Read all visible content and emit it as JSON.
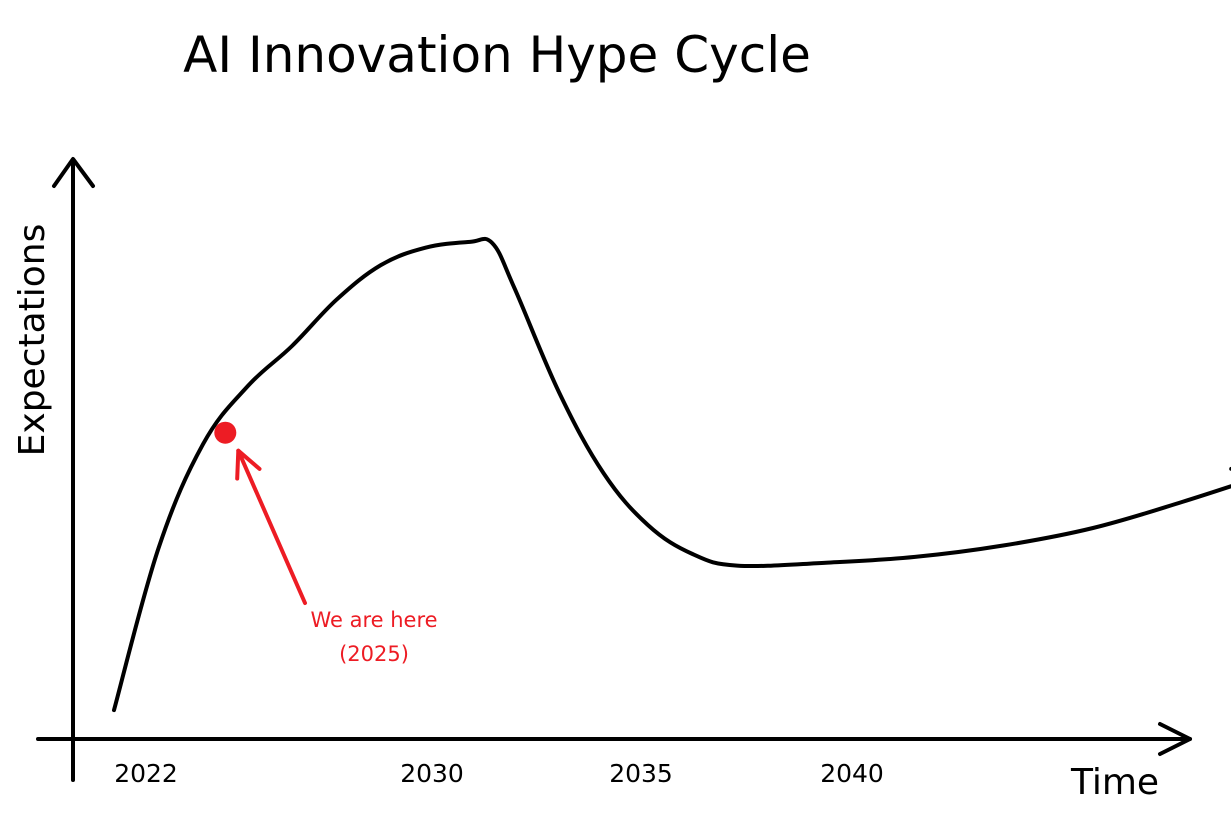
{
  "chart_data": {
    "type": "line",
    "title": "AI Innovation Hype Cycle",
    "xlabel": "Time",
    "ylabel": "Expectations",
    "x_ticks": [
      "2022",
      "2030",
      "2035",
      "2040"
    ],
    "grid": false,
    "series": [
      {
        "points": [
          {
            "x": 2022,
            "y": 5
          },
          {
            "x": 2023,
            "y": 33
          },
          {
            "x": 2024,
            "y": 51
          },
          {
            "x": 2025,
            "y": 61
          },
          {
            "x": 2026,
            "y": 68
          },
          {
            "x": 2027,
            "y": 76
          },
          {
            "x": 2028,
            "y": 82
          },
          {
            "x": 2029,
            "y": 85
          },
          {
            "x": 2030,
            "y": 86
          },
          {
            "x": 2030.5,
            "y": 85.8
          },
          {
            "x": 2031,
            "y": 78
          },
          {
            "x": 2032,
            "y": 60
          },
          {
            "x": 2033,
            "y": 46
          },
          {
            "x": 2034,
            "y": 37
          },
          {
            "x": 2035,
            "y": 32
          },
          {
            "x": 2036,
            "y": 30
          },
          {
            "x": 2038,
            "y": 30.5
          },
          {
            "x": 2040,
            "y": 31.5
          },
          {
            "x": 2042,
            "y": 33.5
          },
          {
            "x": 2044,
            "y": 36.5
          },
          {
            "x": 2046,
            "y": 41
          },
          {
            "x": 2048,
            "y": 46
          }
        ],
        "color": "#000000"
      }
    ],
    "marker": {
      "x": 2024.5,
      "y": 53,
      "color": "#ed1c24"
    },
    "annotation": {
      "line1": "We are here",
      "line2": "(2025)",
      "color": "#ed1c24"
    }
  }
}
